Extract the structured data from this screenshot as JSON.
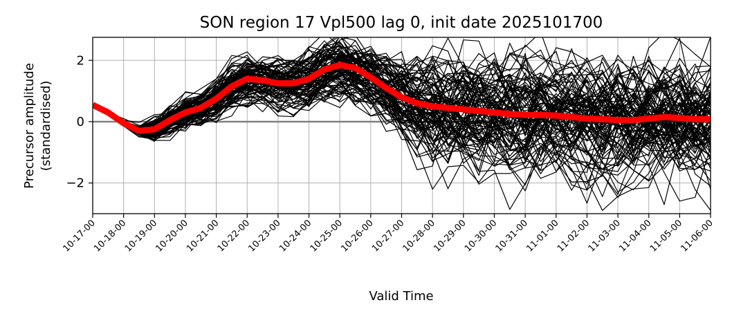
{
  "chart_data": {
    "type": "line",
    "title": "SON region 17 Vpl500 lag 0, init date 2025101700",
    "xlabel": "Valid Time",
    "ylabel_line1": "Precursor amplitude",
    "ylabel_line2": "(standardised)",
    "x_tick_labels": [
      "10-17-00",
      "10-18-00",
      "10-19-00",
      "10-20-00",
      "10-21-00",
      "10-22-00",
      "10-23-00",
      "10-24-00",
      "10-25-00",
      "10-26-00",
      "10-27-00",
      "10-28-00",
      "10-29-00",
      "10-30-00",
      "10-31-00",
      "11-01-00",
      "11-02-00",
      "11-03-00",
      "11-04-00",
      "11-05-00",
      "11-06-00"
    ],
    "y_ticks": [
      -2,
      0,
      2
    ],
    "y_tick_labels": [
      "−2",
      "0",
      "2"
    ],
    "xlim": [
      0,
      480
    ],
    "ylim": [
      -3.0,
      2.75
    ],
    "grid": true,
    "step_hours": 12,
    "zero_line_color": "#808080",
    "ensemble_color": "#000000",
    "mean_color": "#ff0000",
    "ensemble_member_count": 100,
    "ensemble_spread": [
      0.0,
      0.0,
      0.05,
      0.1,
      0.2,
      0.25,
      0.3,
      0.3,
      0.35,
      0.35,
      0.4,
      0.4,
      0.45,
      0.45,
      0.5,
      0.55,
      0.55,
      0.55,
      0.6,
      0.65,
      0.75,
      0.85,
      0.9,
      0.95,
      1.0,
      1.0,
      1.0,
      1.05,
      1.05,
      1.05,
      1.05,
      1.05,
      1.05,
      1.05,
      1.05,
      1.05,
      1.05,
      1.05,
      1.05,
      1.05,
      1.05
    ],
    "series": [
      {
        "values": [
          0.55,
          0.3,
          -0.05,
          -0.3,
          -0.25,
          0.05,
          0.3,
          0.45,
          0.75,
          1.15,
          1.4,
          1.35,
          1.25,
          1.25,
          1.4,
          1.7,
          1.85,
          1.75,
          1.45,
          1.1,
          0.8,
          0.6,
          0.5,
          0.45,
          0.4,
          0.35,
          0.3,
          0.25,
          0.22,
          0.22,
          0.2,
          0.15,
          0.1,
          0.08,
          0.05,
          0.05,
          0.1,
          0.15,
          0.12,
          0.08,
          0.08
        ]
      }
    ]
  }
}
